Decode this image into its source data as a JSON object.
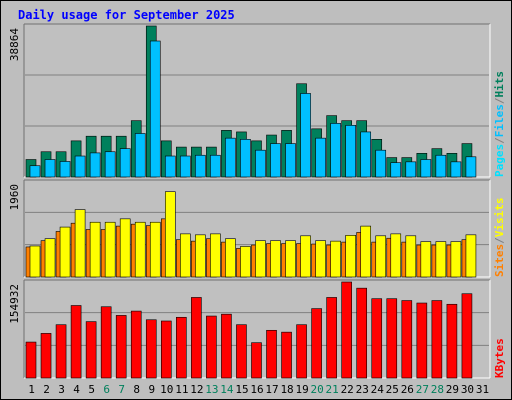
{
  "title": "Daily usage for September 2025",
  "colors": {
    "title": "#0000ff",
    "frame": "#bebebe",
    "panel_bg": "#c0c0c0",
    "grid": "#808080",
    "hits": "#00805c",
    "files": "#00c0ff",
    "pages": "#00e0ff",
    "visits": "#ffff00",
    "sites": "#ff8000",
    "kbytes": "#ff0000",
    "weekend": "#00805c",
    "weekday": "#000000"
  },
  "legends": {
    "top": [
      "Pages",
      "/",
      "Files",
      "/",
      "Hits"
    ],
    "middle": [
      "Sites",
      "/",
      "Visits"
    ],
    "bottom": [
      "KBytes"
    ]
  },
  "x_ticks": [
    "1",
    "2",
    "3",
    "4",
    "5",
    "6",
    "7",
    "8",
    "9",
    "10",
    "11",
    "12",
    "13",
    "14",
    "15",
    "16",
    "17",
    "18",
    "19",
    "20",
    "21",
    "22",
    "23",
    "24",
    "25",
    "26",
    "27",
    "28",
    "29",
    "30",
    "31"
  ],
  "weekend_days": [
    6,
    7,
    13,
    14,
    20,
    21,
    27,
    28
  ],
  "chart_data": [
    {
      "type": "bar",
      "panel": "top",
      "ymax_label": "38864",
      "ylim": [
        0,
        38864
      ],
      "categories": [
        "1",
        "2",
        "3",
        "4",
        "5",
        "6",
        "7",
        "8",
        "9",
        "10",
        "11",
        "12",
        "13",
        "14",
        "15",
        "16",
        "17",
        "18",
        "19",
        "20",
        "21",
        "22",
        "23",
        "24",
        "25",
        "26",
        "27",
        "28",
        "29",
        "30",
        "31"
      ],
      "series": [
        {
          "name": "Hits",
          "values": [
            4500,
            6500,
            6500,
            9300,
            10500,
            10500,
            10500,
            14500,
            38864,
            9300,
            7700,
            7700,
            7700,
            12000,
            11600,
            9300,
            10800,
            12000,
            24000,
            12400,
            15800,
            14500,
            14500,
            9700,
            5000,
            5000,
            6100,
            7300,
            6100,
            8600,
            0
          ]
        },
        {
          "name": "Files",
          "values": [
            2900,
            4500,
            4000,
            5400,
            6200,
            6500,
            7300,
            11200,
            35000,
            5400,
            5400,
            5600,
            5600,
            10000,
            9700,
            6900,
            8600,
            8600,
            21500,
            10000,
            13800,
            13300,
            11600,
            6900,
            3700,
            3900,
            4500,
            5600,
            3900,
            5200,
            0
          ]
        }
      ]
    },
    {
      "type": "bar",
      "panel": "middle",
      "ymax_label": "1960",
      "ylim": [
        0,
        1960
      ],
      "categories": [
        "1",
        "2",
        "3",
        "4",
        "5",
        "6",
        "7",
        "8",
        "9",
        "10",
        "11",
        "12",
        "13",
        "14",
        "15",
        "16",
        "17",
        "18",
        "19",
        "20",
        "21",
        "22",
        "23",
        "24",
        "25",
        "26",
        "27",
        "28",
        "29",
        "30",
        "31"
      ],
      "series": [
        {
          "name": "Visits",
          "values": [
            620,
            750,
            940,
            1110,
            980,
            980,
            1050,
            1090,
            1060,
            1200,
            770,
            740,
            790,
            720,
            590,
            660,
            690,
            690,
            690,
            680,
            660,
            720,
            920,
            720,
            800,
            720,
            660,
            660,
            660,
            770,
            0
          ]
        },
        {
          "name": "Sites",
          "values": [
            640,
            790,
            1030,
            1390,
            1130,
            1130,
            1200,
            1130,
            1130,
            1760,
            890,
            870,
            890,
            790,
            630,
            750,
            750,
            750,
            850,
            750,
            740,
            860,
            1050,
            850,
            890,
            850,
            730,
            730,
            730,
            870,
            0
          ]
        }
      ]
    },
    {
      "type": "bar",
      "panel": "bottom",
      "ymax_label": "154932",
      "ylim": [
        0,
        154932
      ],
      "categories": [
        "1",
        "2",
        "3",
        "4",
        "5",
        "6",
        "7",
        "8",
        "9",
        "10",
        "11",
        "12",
        "13",
        "14",
        "15",
        "16",
        "17",
        "18",
        "19",
        "20",
        "21",
        "22",
        "23",
        "24",
        "25",
        "26",
        "27",
        "28",
        "29",
        "30",
        "31"
      ],
      "series": [
        {
          "name": "KBytes",
          "values": [
            58000,
            72000,
            86000,
            117000,
            91000,
            115000,
            101000,
            108000,
            94000,
            92000,
            98000,
            130000,
            100000,
            103000,
            86000,
            57000,
            77000,
            74000,
            86000,
            112000,
            130000,
            154932,
            145000,
            128000,
            128000,
            125000,
            121000,
            125000,
            119000,
            136000,
            0
          ]
        }
      ]
    }
  ]
}
